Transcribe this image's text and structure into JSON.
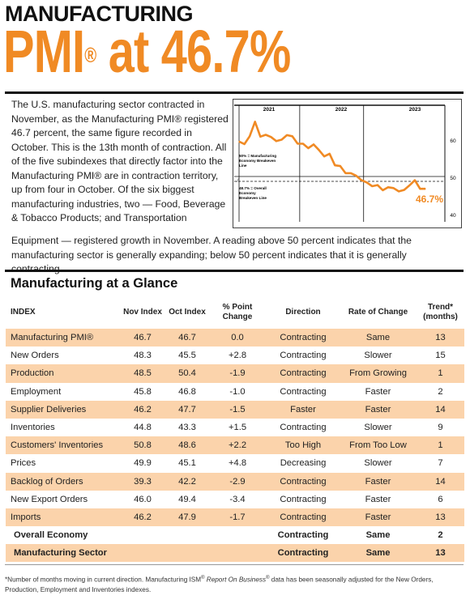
{
  "header": {
    "kicker": "MANUFACTURING",
    "title_main": "PMI",
    "title_reg": "®",
    "title_rest": " at 46.7%"
  },
  "intro": {
    "left": "The U.S. manufacturing sector contracted in November, as the Manufacturing PMI® registered 46.7 percent, the same figure recorded in October. This is the 13th month of contraction. All of the five subindexes that directly factor into the Manufacturing PMI® are in contraction territory, up from four in October. Of the six biggest manufacturing industries, two — Food, Beverage & Tobacco Products; and Transportation",
    "full": "Equipment — registered growth in November. A reading above 50 percent indicates that the manufacturing sector is generally expanding; below 50 percent indicates that it is generally contracting."
  },
  "chart_data": {
    "type": "line",
    "title": "",
    "xlabel": "",
    "ylabel": "",
    "year_labels": [
      "2021",
      "2022",
      "2023"
    ],
    "ytick_labels": [
      "60",
      "50",
      "40"
    ],
    "ylim": [
      37,
      68
    ],
    "series": [
      {
        "values": [
          59.4,
          58.7,
          60.8,
          64.7,
          60.7,
          61.2,
          60.6,
          59.5,
          59.9,
          61.1,
          60.8,
          58.8,
          58.8,
          57.6,
          58.6,
          57.1,
          55.4,
          56.1,
          53.0,
          52.8,
          50.9,
          50.9,
          50.2,
          49.0,
          48.4,
          47.4,
          47.7,
          46.3,
          47.1,
          46.9,
          46.0,
          46.4,
          47.6,
          49.0,
          46.7,
          46.7
        ]
      }
    ],
    "reference_line": {
      "value": 50,
      "label": "50% = Manufacturing Economy Breakeven Line"
    },
    "dashed_line": {
      "value": 48.7,
      "label": "48.7% = Overall Economy Breakeven Line"
    },
    "end_label": "46.7%",
    "grid": false,
    "colors": {
      "series": "#f08a24",
      "axis": "#111111"
    }
  },
  "glance": {
    "title": "Manufacturing at a Glance",
    "headers": {
      "index": "INDEX",
      "nov": "Nov Index",
      "oct": "Oct Index",
      "change": "% Point Change",
      "direction": "Direction",
      "rate": "Rate of Change",
      "trend": "Trend* (months)"
    },
    "rows": [
      {
        "index": "Manufacturing PMI®",
        "nov": "46.7",
        "oct": "46.7",
        "change": "0.0",
        "direction": "Contracting",
        "rate": "Same",
        "trend": "13"
      },
      {
        "index": "New Orders",
        "nov": "48.3",
        "oct": "45.5",
        "change": "+2.8",
        "direction": "Contracting",
        "rate": "Slower",
        "trend": "15"
      },
      {
        "index": "Production",
        "nov": "48.5",
        "oct": "50.4",
        "change": "-1.9",
        "direction": "Contracting",
        "rate": "From Growing",
        "trend": "1"
      },
      {
        "index": "Employment",
        "nov": "45.8",
        "oct": "46.8",
        "change": "-1.0",
        "direction": "Contracting",
        "rate": "Faster",
        "trend": "2"
      },
      {
        "index": "Supplier Deliveries",
        "nov": "46.2",
        "oct": "47.7",
        "change": "-1.5",
        "direction": "Faster",
        "rate": "Faster",
        "trend": "14"
      },
      {
        "index": "Inventories",
        "nov": "44.8",
        "oct": "43.3",
        "change": "+1.5",
        "direction": "Contracting",
        "rate": "Slower",
        "trend": "9"
      },
      {
        "index": "Customers' Inventories",
        "nov": "50.8",
        "oct": "48.6",
        "change": "+2.2",
        "direction": "Too High",
        "rate": "From Too Low",
        "trend": "1"
      },
      {
        "index": "Prices",
        "nov": "49.9",
        "oct": "45.1",
        "change": "+4.8",
        "direction": "Decreasing",
        "rate": "Slower",
        "trend": "7"
      },
      {
        "index": "Backlog of Orders",
        "nov": "39.3",
        "oct": "42.2",
        "change": "-2.9",
        "direction": "Contracting",
        "rate": "Faster",
        "trend": "14"
      },
      {
        "index": "New Export Orders",
        "nov": "46.0",
        "oct": "49.4",
        "change": "-3.4",
        "direction": "Contracting",
        "rate": "Faster",
        "trend": "6"
      },
      {
        "index": "Imports",
        "nov": "46.2",
        "oct": "47.9",
        "change": "-1.7",
        "direction": "Contracting",
        "rate": "Faster",
        "trend": "13"
      },
      {
        "index": "Overall Economy",
        "nov": "",
        "oct": "",
        "change": "",
        "direction": "Contracting",
        "rate": "Same",
        "trend": "2",
        "summary": true
      },
      {
        "index": "Manufacturing Sector",
        "nov": "",
        "oct": "",
        "change": "",
        "direction": "Contracting",
        "rate": "Same",
        "trend": "13",
        "summary": true
      }
    ]
  },
  "footnote": {
    "part1": "*Number of months moving in current direction. Manufacturing ISM",
    "reg1": "®",
    "italic": " Report On Business",
    "reg2": "®",
    "part2": " data has been seasonally adjusted for the New Orders, Production, Employment and Inventories indexes."
  },
  "colors": {
    "accent": "#f08a24",
    "row_shade": "#fbd3ab"
  }
}
